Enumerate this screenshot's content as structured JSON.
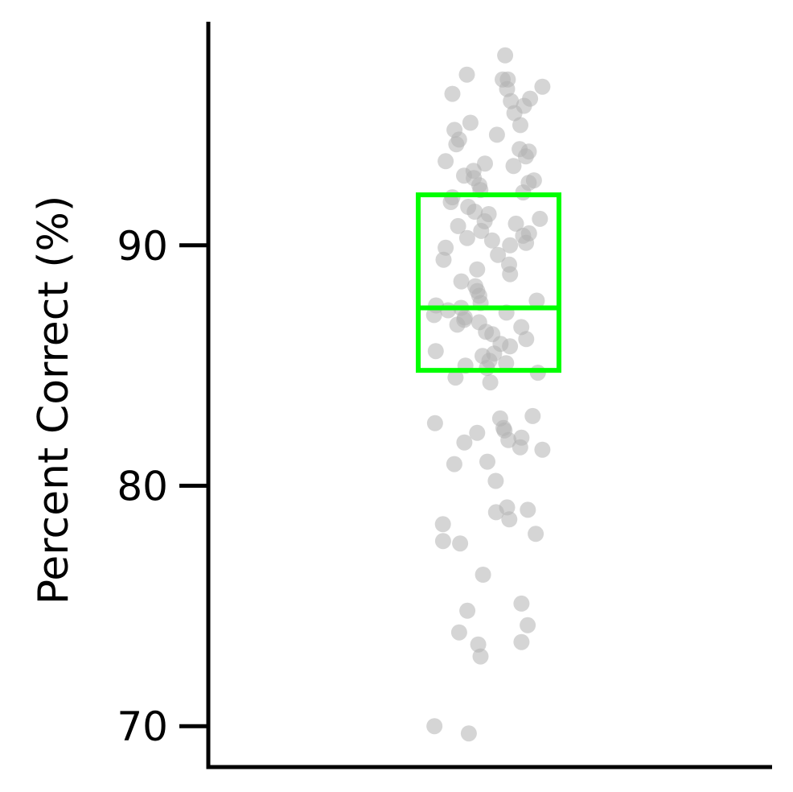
{
  "chart_data": {
    "type": "scatter",
    "title": "",
    "xlabel": "",
    "ylabel": "Percent Correct (%)",
    "ylim": [
      68.3,
      99.3
    ],
    "yticks": [
      70,
      80,
      90
    ],
    "yticklabels": [
      "70",
      "80",
      "90"
    ],
    "grid": false,
    "legend": "none",
    "colors": {
      "points": "#b3b3b3",
      "box": "#00ff00",
      "axis": "#000000"
    },
    "box": {
      "q1": 84.8,
      "median": 87.4,
      "q3": 92.1
    },
    "series": [
      {
        "values": [
          97.9,
          97.1,
          96.9,
          96.6,
          96.9,
          96.5,
          96.3,
          96.1,
          96.0,
          95.8,
          95.5,
          95.1,
          95.0,
          94.8,
          94.6,
          94.4,
          94.2,
          94.0,
          93.9,
          93.7,
          93.5,
          93.4,
          93.3,
          93.1,
          92.9,
          92.8,
          92.7,
          92.6,
          92.5,
          92.3,
          92.2,
          92.0,
          91.8,
          91.6,
          91.4,
          91.3,
          91.1,
          91.0,
          90.9,
          90.8,
          90.6,
          90.5,
          90.4,
          90.3,
          90.2,
          90.1,
          90.0,
          89.9,
          89.6,
          89.4,
          89.2,
          89.0,
          88.8,
          88.5,
          88.3,
          88.1,
          87.9,
          87.7,
          87.6,
          87.5,
          87.4,
          87.3,
          87.2,
          87.1,
          87.0,
          86.9,
          86.8,
          86.7,
          86.6,
          86.4,
          86.3,
          86.1,
          85.9,
          85.8,
          85.6,
          85.5,
          85.4,
          85.2,
          85.1,
          85.0,
          84.9,
          84.7,
          84.5,
          84.3,
          82.9,
          82.8,
          82.6,
          82.4,
          82.3,
          82.2,
          82.0,
          81.9,
          81.8,
          81.6,
          81.5,
          81.0,
          80.9,
          80.2,
          79.1,
          79.0,
          78.9,
          78.6,
          78.4,
          78.0,
          77.7,
          77.6,
          76.3,
          75.1,
          74.8,
          74.2,
          73.9,
          73.5,
          73.4,
          72.9,
          70.0,
          69.7
        ]
      }
    ]
  }
}
